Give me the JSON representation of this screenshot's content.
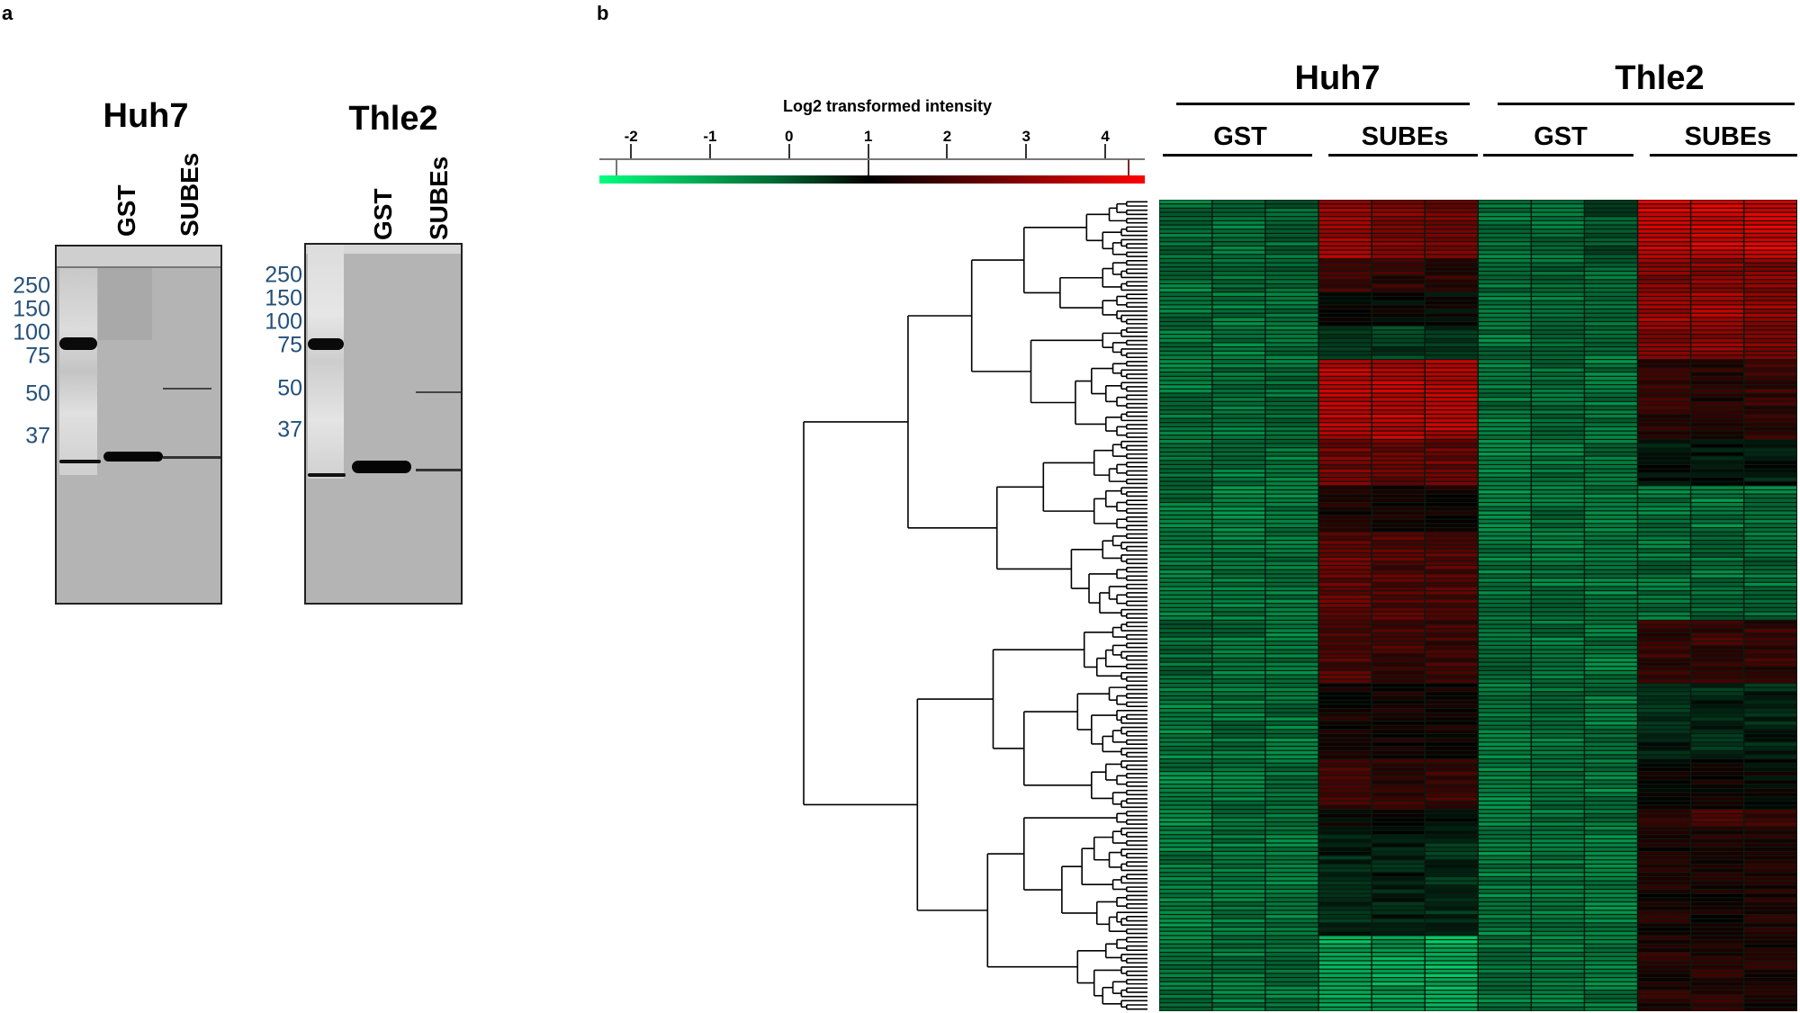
{
  "panels": {
    "a_label": "a",
    "b_label": "b"
  },
  "gels": [
    {
      "title": "Huh7",
      "lanes": [
        "GST",
        "SUBEs"
      ],
      "markers": [
        "250",
        "150",
        "100",
        "75",
        "50",
        "37"
      ]
    },
    {
      "title": "Thle2",
      "lanes": [
        "GST",
        "SUBEs"
      ],
      "markers": [
        "250",
        "150",
        "100",
        "75",
        "50",
        "37"
      ]
    }
  ],
  "chart_data": {
    "type": "heatmap",
    "title": "",
    "colorbar": {
      "label": "Log2 transformed intensity",
      "ticks": [
        "-2",
        "-1",
        "0",
        "1",
        "2",
        "3",
        "4"
      ],
      "range": [
        -2.4,
        4.5
      ],
      "midpoint": 1,
      "colors": {
        "low": "#00ff80",
        "mid": "#000000",
        "high": "#ff0000"
      }
    },
    "column_groups": [
      {
        "label": "Huh7",
        "subgroups": [
          {
            "label": "GST",
            "replicates": 3
          },
          {
            "label": "SUBEs",
            "replicates": 3
          }
        ]
      },
      {
        "label": "Thle2",
        "subgroups": [
          {
            "label": "GST",
            "replicates": 3
          },
          {
            "label": "SUBEs",
            "replicates": 3
          }
        ]
      }
    ],
    "row_dendrogram": true,
    "row_blocks": [
      {
        "rows": 14,
        "values": [
          -0.5,
          -0.6,
          -0.4,
          3.4,
          3.0,
          2.8,
          -0.6,
          -0.5,
          -0.1,
          4.0,
          4.0,
          4.1
        ]
      },
      {
        "rows": 8,
        "values": [
          -0.6,
          -0.5,
          -0.4,
          2.0,
          1.8,
          1.7,
          -0.5,
          -0.4,
          -0.5,
          3.0,
          3.1,
          3.0
        ]
      },
      {
        "rows": 8,
        "values": [
          -0.5,
          -0.6,
          -0.4,
          1.1,
          1.0,
          1.0,
          -0.6,
          -0.5,
          -0.6,
          3.3,
          3.4,
          3.2
        ]
      },
      {
        "rows": 8,
        "values": [
          -0.6,
          -0.6,
          -0.5,
          0.3,
          0.2,
          0.3,
          -0.6,
          -0.5,
          -0.6,
          3.0,
          3.0,
          2.9
        ]
      },
      {
        "rows": 19,
        "values": [
          -0.6,
          -0.5,
          -0.5,
          3.6,
          3.7,
          3.6,
          -0.6,
          -0.5,
          -0.6,
          1.8,
          1.6,
          1.8
        ]
      },
      {
        "rows": 11,
        "values": [
          -0.6,
          -0.6,
          -0.6,
          2.7,
          2.5,
          2.6,
          -0.7,
          -0.6,
          -0.5,
          0.8,
          0.8,
          0.7
        ]
      },
      {
        "rows": 11,
        "values": [
          -0.6,
          -0.7,
          -0.6,
          1.4,
          1.3,
          1.2,
          -0.7,
          -0.6,
          -0.7,
          -0.6,
          -0.7,
          -0.6
        ]
      },
      {
        "rows": 21,
        "values": [
          -0.6,
          -0.6,
          -0.6,
          2.4,
          2.2,
          2.2,
          -0.6,
          -0.6,
          -0.7,
          -0.5,
          -0.5,
          -0.5
        ]
      },
      {
        "rows": 15,
        "values": [
          -0.4,
          -0.6,
          -0.6,
          2.2,
          2.0,
          2.0,
          -0.5,
          -0.6,
          -0.6,
          1.8,
          1.9,
          1.8
        ]
      },
      {
        "rows": 18,
        "values": [
          -0.7,
          -0.6,
          -0.6,
          1.3,
          1.3,
          1.3,
          -0.7,
          -0.6,
          -0.6,
          0.5,
          0.5,
          0.5
        ]
      },
      {
        "rows": 12,
        "values": [
          -0.7,
          -0.6,
          -0.6,
          2.0,
          1.8,
          2.0,
          -0.7,
          -0.6,
          -0.7,
          1.0,
          1.2,
          1.0
        ]
      },
      {
        "rows": 4,
        "values": [
          -0.7,
          -0.6,
          -0.6,
          1.0,
          1.0,
          1.0,
          -0.7,
          -0.6,
          -0.6,
          1.8,
          2.0,
          1.8
        ]
      },
      {
        "rows": 26,
        "values": [
          -0.7,
          -0.6,
          -0.6,
          0.5,
          0.6,
          0.4,
          -0.7,
          -0.6,
          -0.7,
          1.4,
          1.4,
          1.4
        ]
      },
      {
        "rows": 18,
        "values": [
          -0.6,
          -0.6,
          -0.6,
          -1.3,
          -1.2,
          -1.4,
          -0.6,
          -0.6,
          -0.6,
          1.6,
          1.6,
          1.5
        ]
      }
    ]
  }
}
